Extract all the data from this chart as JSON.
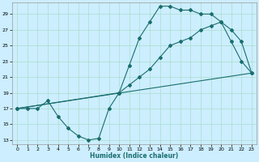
{
  "xlabel": "Humidex (Indice chaleur)",
  "xlim": [
    -0.5,
    23.5
  ],
  "ylim": [
    12.5,
    30.5
  ],
  "yticks": [
    13,
    15,
    17,
    19,
    21,
    23,
    25,
    27,
    29
  ],
  "xticks": [
    0,
    1,
    2,
    3,
    4,
    5,
    6,
    7,
    8,
    9,
    10,
    11,
    12,
    13,
    14,
    15,
    16,
    17,
    18,
    19,
    20,
    21,
    22,
    23
  ],
  "bg_color": "#cceeff",
  "grid_color": "#aaddcc",
  "line_color": "#1a6e6e",
  "line1_x": [
    0,
    1,
    2,
    3,
    4,
    5,
    6,
    7,
    8,
    9,
    10,
    11,
    12,
    13,
    14,
    15,
    16,
    17,
    18,
    19,
    20,
    21,
    22,
    23
  ],
  "line1_y": [
    17,
    17,
    17,
    18,
    16,
    14.5,
    13.5,
    13,
    13.2,
    17,
    19,
    22.5,
    26,
    28,
    30,
    30,
    29.5,
    29.5,
    29,
    29,
    28,
    25.5,
    23,
    21.5
  ],
  "line2_x": [
    0,
    10,
    11,
    12,
    13,
    14,
    15,
    16,
    17,
    18,
    19,
    20,
    21,
    22,
    23
  ],
  "line2_y": [
    17,
    19,
    20,
    21,
    22,
    23.5,
    25,
    25.5,
    26,
    27,
    27.5,
    28,
    27,
    25.5,
    21.5
  ],
  "line3_x": [
    0,
    23
  ],
  "line3_y": [
    17,
    21.5
  ],
  "marker": "D",
  "markersize": 2,
  "linewidth": 0.8,
  "tick_fontsize": 4.5,
  "xlabel_fontsize": 5.5
}
